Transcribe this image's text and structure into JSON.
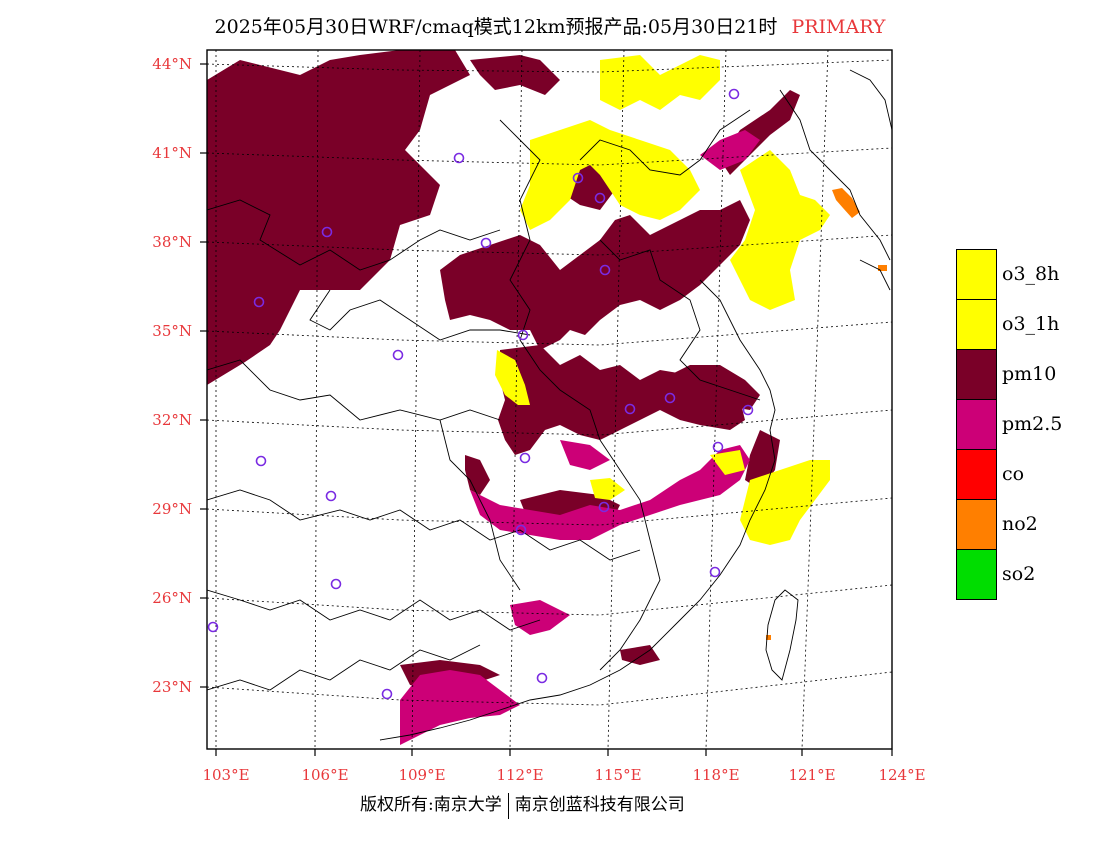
{
  "title": {
    "main": "2025年05月30日WRF/cmaq模式12km预报产品:05月30日21时",
    "tag": "PRIMARY",
    "tag_color": "#e8383b"
  },
  "axes": {
    "lat_labels": [
      "44°N",
      "41°N",
      "38°N",
      "35°N",
      "32°N",
      "29°N",
      "26°N",
      "23°N"
    ],
    "lon_labels": [
      "103°E",
      "106°E",
      "109°E",
      "112°E",
      "115°E",
      "118°E",
      "121°E",
      "124°E"
    ],
    "label_color": "#e8383b"
  },
  "legend": [
    {
      "label": "o3_8h",
      "color": "#ffff00"
    },
    {
      "label": "o3_1h",
      "color": "#ffff00"
    },
    {
      "label": "pm10",
      "color": "#7a0028"
    },
    {
      "label": "pm2.5",
      "color": "#cc0077"
    },
    {
      "label": "co",
      "color": "#ff0000"
    },
    {
      "label": "no2",
      "color": "#ff7f00"
    },
    {
      "label": "so2",
      "color": "#00dd00"
    }
  ],
  "footer": {
    "left": "版权所有:南京大学",
    "right": "南京创蓝科技有限公司"
  }
}
